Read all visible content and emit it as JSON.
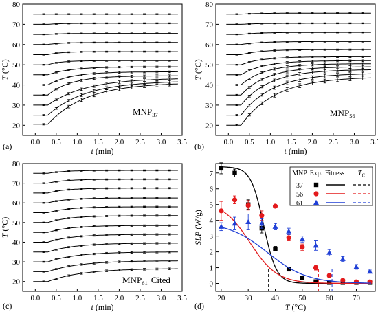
{
  "figure": {
    "panels": [
      {
        "letter": "(a)",
        "label_main": "MNP",
        "label_sub": "37",
        "label_extra": ""
      },
      {
        "letter": "(b)",
        "label_main": "MNP",
        "label_sub": "56",
        "label_extra": ""
      },
      {
        "letter": "(c)",
        "label_main": "MNP",
        "label_sub": "61",
        "label_extra": "Cited"
      },
      {
        "letter": "(d)"
      }
    ]
  },
  "chart_data": [
    {
      "type": "line",
      "panel": "a",
      "xlabel": "t (min)",
      "ylabel": "T (°C)",
      "xlim": [
        -0.3,
        3.5
      ],
      "ylim": [
        15,
        80
      ],
      "x_ticks": [
        0.0,
        0.5,
        1.0,
        1.5,
        2.0,
        2.5,
        3.0,
        3.5
      ],
      "y_ticks": [
        20,
        30,
        40,
        50,
        60,
        70,
        80
      ],
      "grid": false,
      "series": [
        {
          "start": 75,
          "end": 75,
          "rise_speed": "fast"
        },
        {
          "start": 70,
          "end": 70.5,
          "rise_speed": "fast"
        },
        {
          "start": 65,
          "end": 65.5,
          "rise_speed": "fast"
        },
        {
          "start": 60,
          "end": 61,
          "rise_speed": "fast"
        },
        {
          "start": 55,
          "end": 56.5,
          "rise_speed": "fast"
        },
        {
          "start": 50,
          "end": 52,
          "rise_speed": "fast"
        },
        {
          "start": 45,
          "end": 49,
          "rise_speed": "medium"
        },
        {
          "start": 40,
          "end": 46.5,
          "rise_speed": "medium"
        },
        {
          "start": 35,
          "end": 44.5,
          "rise_speed": "medium"
        },
        {
          "start": 30,
          "end": 43,
          "rise_speed": "slow"
        },
        {
          "start": 25,
          "end": 41.5,
          "rise_speed": "slow"
        },
        {
          "start": 20.5,
          "end": 40.5,
          "rise_speed": "slow"
        }
      ]
    },
    {
      "type": "line",
      "panel": "b",
      "xlabel": "t (min)",
      "ylabel": "T (°C)",
      "xlim": [
        -0.3,
        3.5
      ],
      "ylim": [
        15,
        80
      ],
      "x_ticks": [
        0.0,
        0.5,
        1.0,
        1.5,
        2.0,
        2.5,
        3.0,
        3.5
      ],
      "y_ticks": [
        20,
        30,
        40,
        50,
        60,
        70,
        80
      ],
      "grid": false,
      "series": [
        {
          "start": 75,
          "end": 75.5
        },
        {
          "start": 70,
          "end": 70.5
        },
        {
          "start": 65,
          "end": 66
        },
        {
          "start": 60,
          "end": 61.5
        },
        {
          "start": 55,
          "end": 57.5
        },
        {
          "start": 50,
          "end": 54
        },
        {
          "start": 45,
          "end": 52
        },
        {
          "start": 40,
          "end": 50.5
        },
        {
          "start": 35,
          "end": 49
        },
        {
          "start": 30,
          "end": 47.5
        },
        {
          "start": 25,
          "end": 45.5
        },
        {
          "start": 20,
          "end": 43.5
        }
      ]
    },
    {
      "type": "line",
      "panel": "c",
      "xlabel": "t (min)",
      "ylabel": "T (°C)",
      "xlim": [
        -0.3,
        3.5
      ],
      "ylim": [
        15,
        80
      ],
      "x_ticks": [
        0.0,
        0.5,
        1.0,
        1.5,
        2.0,
        2.5,
        3.0,
        3.5
      ],
      "y_ticks": [
        20,
        30,
        40,
        50,
        60,
        70,
        80
      ],
      "grid": false,
      "series": [
        {
          "start": 75,
          "end": 76.5
        },
        {
          "start": 70,
          "end": 72
        },
        {
          "start": 65,
          "end": 67.5
        },
        {
          "start": 60,
          "end": 62.5
        },
        {
          "start": 55,
          "end": 58
        },
        {
          "start": 50,
          "end": 53.5
        },
        {
          "start": 45,
          "end": 48.5
        },
        {
          "start": 40,
          "end": 44
        },
        {
          "start": 35,
          "end": 39.5
        },
        {
          "start": 30,
          "end": 35
        },
        {
          "start": 25,
          "end": 30.5
        },
        {
          "start": 20,
          "end": 26.5
        }
      ]
    },
    {
      "type": "scatter",
      "panel": "d",
      "xlabel": "T (°C)",
      "ylabel": "SLP (W/g)",
      "xlim": [
        18,
        77
      ],
      "ylim": [
        -0.5,
        7.6
      ],
      "x_ticks": [
        20,
        30,
        40,
        50,
        60,
        70
      ],
      "y_ticks": [
        0,
        1,
        2,
        3,
        4,
        5,
        6,
        7
      ],
      "grid": false,
      "legend": {
        "position": "top-right",
        "headers": [
          "MNP",
          "Exp.",
          "Fitness",
          "T",
          "C"
        ]
      },
      "series": [
        {
          "name": "37",
          "color": "#000000",
          "marker": "square",
          "tc": 37.5,
          "x": [
            20,
            25,
            30,
            35,
            40,
            45,
            50,
            55,
            60,
            65,
            70,
            75
          ],
          "y": [
            7.3,
            7.0,
            5.0,
            3.5,
            2.2,
            0.9,
            0.35,
            0.12,
            0.05,
            0.05,
            0.05,
            0.05
          ],
          "err": [
            0.35,
            0.25,
            0.3,
            0.3,
            0.15,
            0.1,
            0.1,
            0.05,
            0.05,
            0.05,
            0.05,
            0.05
          ],
          "fit": {
            "amplitude": 7.4,
            "center": 34,
            "width": 8.5
          }
        },
        {
          "name": "56",
          "color": "#e31a1c",
          "marker": "circle",
          "tc": 56,
          "x": [
            20,
            25,
            30,
            35,
            40,
            45,
            50,
            55,
            60,
            65,
            70,
            75
          ],
          "y": [
            4.6,
            5.3,
            4.95,
            4.3,
            4.9,
            2.9,
            2.3,
            1.0,
            0.5,
            0.2,
            0.1,
            0.1
          ],
          "err": [
            0.6,
            0.25,
            0.3,
            0.3,
            0.1,
            0.2,
            0.2,
            0.15,
            0.1,
            0.05,
            0.05,
            0.05
          ],
          "fit": {
            "amplitude": 5.2,
            "center": 27,
            "width": 18
          }
        },
        {
          "name": "61",
          "color": "#1f3fd6",
          "marker": "triangle",
          "tc": 61,
          "x": [
            20,
            25,
            30,
            35,
            40,
            45,
            50,
            55,
            60,
            65,
            70,
            75
          ],
          "y": [
            3.6,
            3.8,
            3.9,
            3.8,
            3.6,
            3.3,
            2.8,
            2.4,
            1.95,
            1.55,
            1.05,
            0.75
          ],
          "err": [
            0.25,
            0.4,
            0.5,
            0.3,
            0.2,
            0.2,
            0.2,
            0.3,
            0.2,
            0.15,
            0.15,
            0.1
          ],
          "fit": {
            "amplitude": 3.9,
            "center": 32,
            "width": 26
          }
        }
      ]
    }
  ]
}
